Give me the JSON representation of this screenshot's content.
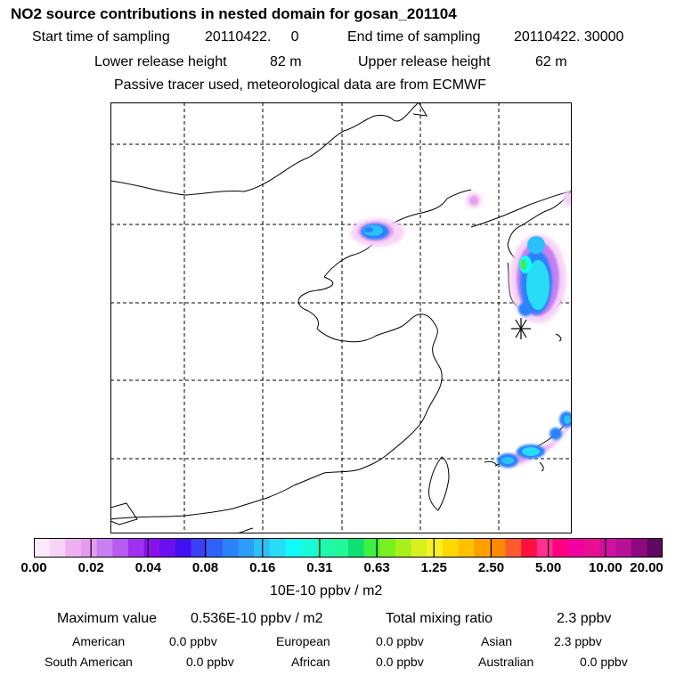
{
  "title": "NO2 source contributions in nested domain for gosan_201104",
  "header": {
    "start_label": "Start time of sampling",
    "start_value": "20110422.     0",
    "end_label": "End time of sampling",
    "end_value": "20110422. 30000",
    "lower_label": "Lower release height",
    "lower_value": "82 m",
    "upper_label": "Upper release height",
    "upper_value": "62 m",
    "note": "Passive tracer used, meteorological data are from ECMWF"
  },
  "colorbar": {
    "colors": [
      "#fbeafb",
      "#f7d3f7",
      "#efb0f2",
      "#e59cef",
      "#c77ff1",
      "#b95af3",
      "#a030f0",
      "#8c10ee",
      "#6a10f0",
      "#4010f2",
      "#3a40f6",
      "#2f60f8",
      "#2a82fa",
      "#2a9cfa",
      "#2ac0fa",
      "#28dcf7",
      "#10fafa",
      "#18fad8",
      "#20f8b0",
      "#22f89a",
      "#10e070",
      "#40f040",
      "#7af020",
      "#a8f01a",
      "#d8f020",
      "#f8f020",
      "#ffd800",
      "#ffc000",
      "#ffa000",
      "#ff8a00",
      "#ff5a30",
      "#ff1040",
      "#ff3090",
      "#ff0080",
      "#f000a0",
      "#e81090",
      "#d010a0",
      "#b8109a",
      "#900880",
      "#60085f"
    ],
    "tick_labels": [
      "0.00",
      "0.02",
      "0.04",
      "0.08",
      "0.16",
      "0.31",
      "0.63",
      "1.25",
      "2.50",
      "5.00",
      "10.00",
      "20.00"
    ],
    "unit": "10E-10 ppbv / m2"
  },
  "summary": {
    "max_label": "Maximum value",
    "max_value": "0.536E-10 ppbv / m2",
    "total_label": "Total mixing ratio",
    "total_value": "2.3 ppbv",
    "regions": [
      {
        "name": "American",
        "value": "0.0 ppbv"
      },
      {
        "name": "European",
        "value": "0.0 ppbv"
      },
      {
        "name": "Asian",
        "value": "2.3 ppbv"
      },
      {
        "name": "South American",
        "value": "0.0 ppbv"
      },
      {
        "name": "African",
        "value": "0.0 ppbv"
      },
      {
        "name": "Australian",
        "value": "0.0 ppbv"
      }
    ]
  },
  "map": {
    "receptor_marker": "asterisk-marker"
  }
}
